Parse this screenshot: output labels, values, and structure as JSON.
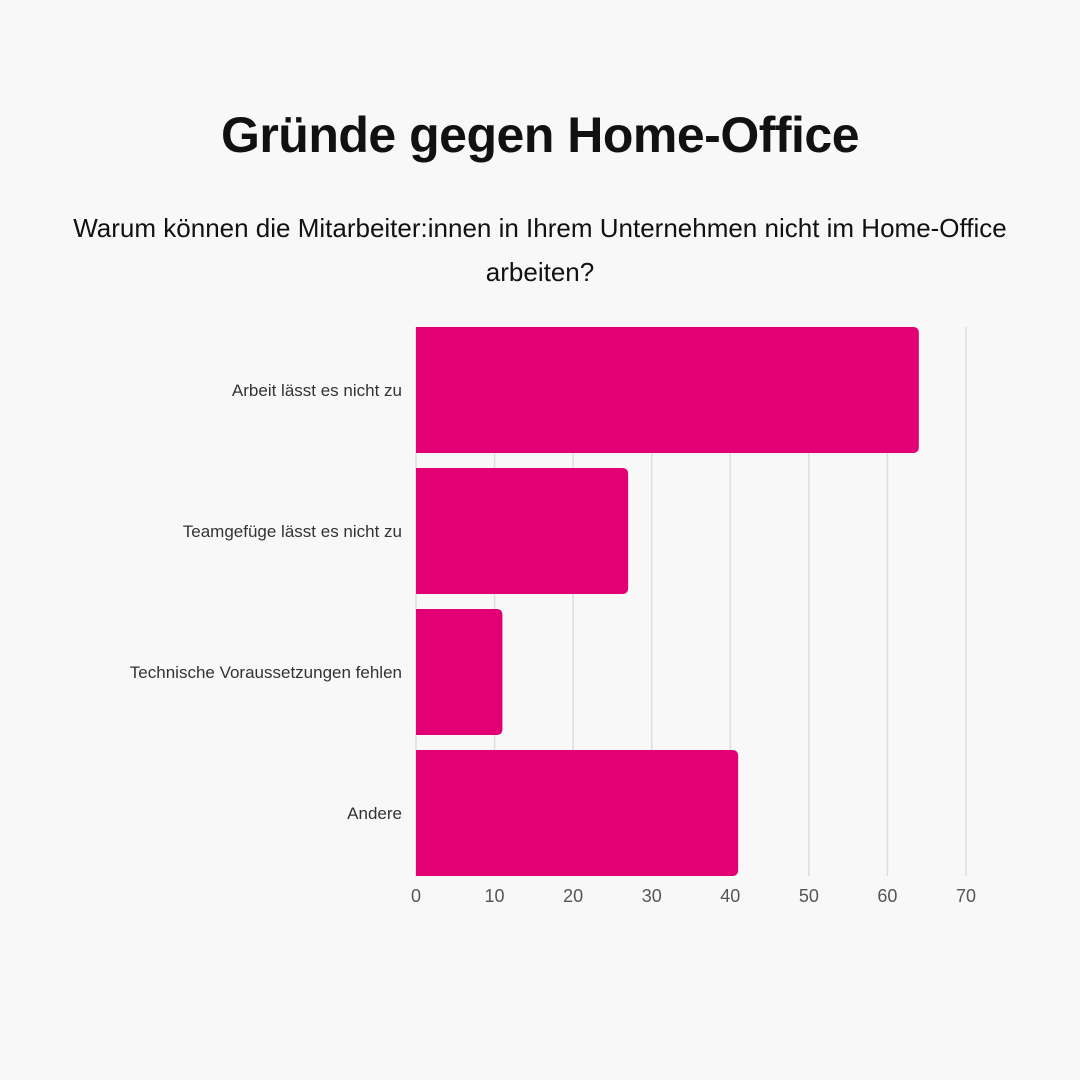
{
  "chart_data": {
    "type": "bar",
    "orientation": "horizontal",
    "title": "Gründe gegen Home-Office",
    "subtitle": "Warum können die Mitarbeiter:innen in Ihrem Unternehmen nicht im Home-Office arbeiten?",
    "categories": [
      "Arbeit lässt es nicht zu",
      "Teamgefüge lässt es nicht zu",
      "Technische Voraussetzungen fehlen",
      "Andere"
    ],
    "values": [
      64,
      27,
      11,
      41
    ],
    "xlim": [
      0,
      70
    ],
    "xticks": [
      "0",
      "10",
      "20",
      "30",
      "40",
      "50",
      "60",
      "70"
    ],
    "xlabel": "",
    "ylabel": "",
    "grid": true,
    "bar_color": "#e20074",
    "grid_color": "#dddddd"
  }
}
